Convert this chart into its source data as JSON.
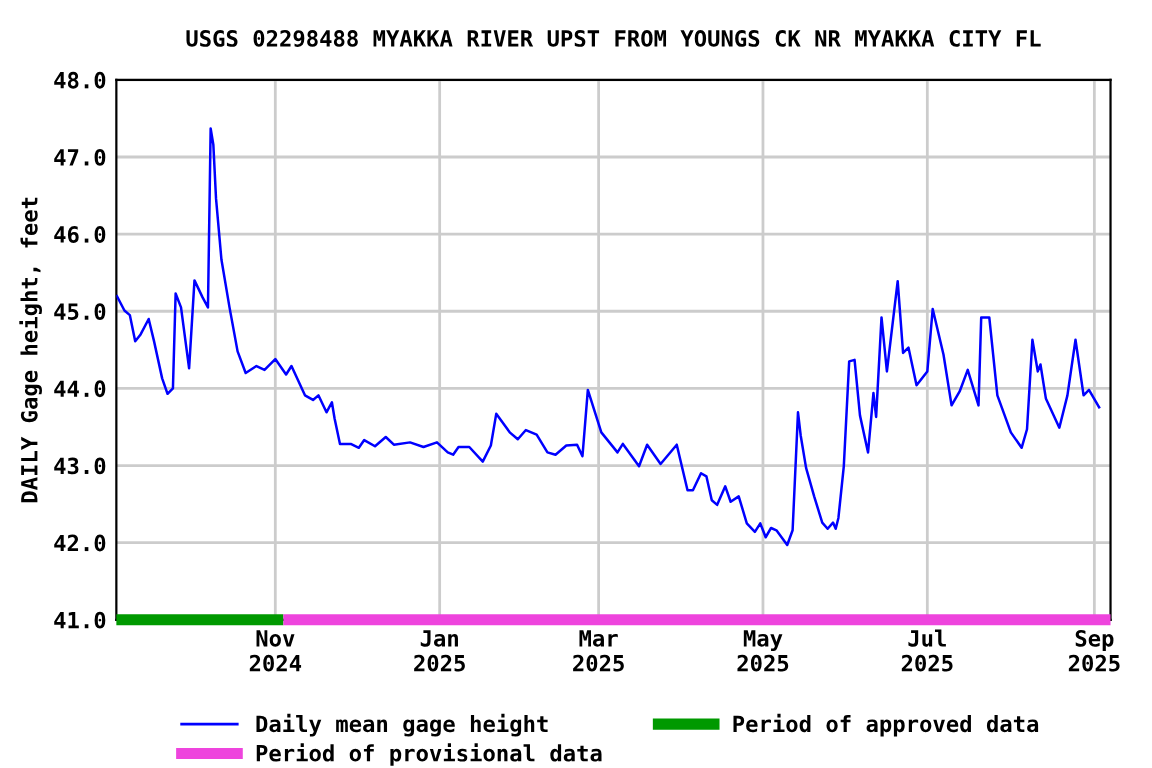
{
  "chart_data": {
    "type": "line",
    "title": "USGS 02298488 MYAKKA RIVER UPST FROM YOUNGS CK NR MYAKKA CITY FL",
    "ylabel": "DAILY Gage height, feet",
    "x": [
      "2024-09-03",
      "2024-09-06",
      "2024-09-08",
      "2024-09-10",
      "2024-09-12",
      "2024-09-15",
      "2024-09-17",
      "2024-09-20",
      "2024-09-22",
      "2024-09-24",
      "2024-09-25",
      "2024-09-27",
      "2024-09-30",
      "2024-10-02",
      "2024-10-05",
      "2024-10-07",
      "2024-10-08",
      "2024-10-09",
      "2024-10-10",
      "2024-10-12",
      "2024-10-15",
      "2024-10-18",
      "2024-10-21",
      "2024-10-25",
      "2024-10-28",
      "2024-11-01",
      "2024-11-05",
      "2024-11-07",
      "2024-11-12",
      "2024-11-15",
      "2024-11-17",
      "2024-11-20",
      "2024-11-22",
      "2024-11-23",
      "2024-11-25",
      "2024-11-29",
      "2024-12-02",
      "2024-12-04",
      "2024-12-08",
      "2024-12-12",
      "2024-12-15",
      "2024-12-21",
      "2024-12-26",
      "2024-12-31",
      "2025-01-04",
      "2025-01-06",
      "2025-01-08",
      "2025-01-12",
      "2025-01-17",
      "2025-01-20",
      "2025-01-22",
      "2025-01-27",
      "2025-01-30",
      "2025-02-02",
      "2025-02-06",
      "2025-02-10",
      "2025-02-13",
      "2025-02-17",
      "2025-02-21",
      "2025-02-23",
      "2025-02-25",
      "2025-03-02",
      "2025-03-08",
      "2025-03-10",
      "2025-03-16",
      "2025-03-19",
      "2025-03-24",
      "2025-03-30",
      "2025-04-03",
      "2025-04-05",
      "2025-04-08",
      "2025-04-10",
      "2025-04-12",
      "2025-04-14",
      "2025-04-17",
      "2025-04-19",
      "2025-04-22",
      "2025-04-25",
      "2025-04-28",
      "2025-04-30",
      "2025-05-02",
      "2025-05-04",
      "2025-05-06",
      "2025-05-10",
      "2025-05-12",
      "2025-05-14",
      "2025-05-15",
      "2025-05-17",
      "2025-05-20",
      "2025-05-23",
      "2025-05-25",
      "2025-05-27",
      "2025-05-28",
      "2025-05-29",
      "2025-05-31",
      "2025-06-02",
      "2025-06-04",
      "2025-06-06",
      "2025-06-09",
      "2025-06-11",
      "2025-06-12",
      "2025-06-14",
      "2025-06-16",
      "2025-06-20",
      "2025-06-22",
      "2025-06-24",
      "2025-06-27",
      "2025-07-01",
      "2025-07-03",
      "2025-07-07",
      "2025-07-10",
      "2025-07-13",
      "2025-07-16",
      "2025-07-20",
      "2025-07-21",
      "2025-07-24",
      "2025-07-27",
      "2025-08-01",
      "2025-08-05",
      "2025-08-07",
      "2025-08-09",
      "2025-08-11",
      "2025-08-12",
      "2025-08-14",
      "2025-08-19",
      "2025-08-22",
      "2025-08-25",
      "2025-08-28",
      "2025-08-30",
      "2025-09-03"
    ],
    "series": [
      {
        "name": "Daily mean gage height",
        "color": "#0000ff",
        "values": [
          45.21,
          45.01,
          44.95,
          44.61,
          44.7,
          44.9,
          44.61,
          44.13,
          43.93,
          44.0,
          45.23,
          45.05,
          44.26,
          45.4,
          45.18,
          45.05,
          47.37,
          47.16,
          46.46,
          45.67,
          45.05,
          44.48,
          44.2,
          44.29,
          44.24,
          44.38,
          44.18,
          44.29,
          43.91,
          43.85,
          43.91,
          43.69,
          43.82,
          43.61,
          43.28,
          43.28,
          43.23,
          43.33,
          43.25,
          43.37,
          43.27,
          43.3,
          43.24,
          43.3,
          43.17,
          43.14,
          43.24,
          43.24,
          43.05,
          43.26,
          43.67,
          43.43,
          43.34,
          43.46,
          43.4,
          43.17,
          43.14,
          43.26,
          43.27,
          43.12,
          43.98,
          43.43,
          43.17,
          43.28,
          42.99,
          43.27,
          43.02,
          43.27,
          42.68,
          42.68,
          42.9,
          42.86,
          42.55,
          42.49,
          42.73,
          42.53,
          42.6,
          42.25,
          42.14,
          42.25,
          42.07,
          42.19,
          42.16,
          41.97,
          42.16,
          43.69,
          43.39,
          42.97,
          42.6,
          42.26,
          42.18,
          42.26,
          42.18,
          42.32,
          42.99,
          44.35,
          44.37,
          43.65,
          43.17,
          43.94,
          43.63,
          44.92,
          44.22,
          45.39,
          44.46,
          44.53,
          44.04,
          44.22,
          45.03,
          44.44,
          43.78,
          43.96,
          44.24,
          43.78,
          44.92,
          44.92,
          43.91,
          43.43,
          43.23,
          43.47,
          44.63,
          44.22,
          44.31,
          43.87,
          43.49,
          43.91,
          44.63,
          43.91,
          43.98,
          43.74
        ]
      },
      {
        "name": "Period of approved data",
        "color": "#009900",
        "x": [
          "2024-09-03",
          "2024-11-04"
        ],
        "values": [
          41.0,
          41.0
        ]
      },
      {
        "name": "Period of provisional data",
        "color": "#ee44dd",
        "x": [
          "2024-11-04",
          "2025-09-07"
        ],
        "values": [
          41.0,
          41.0
        ]
      }
    ],
    "xlim": [
      "2024-09-03",
      "2025-09-07"
    ],
    "xticks": [
      {
        "value": "2024-11-01",
        "label": "Nov\n2024"
      },
      {
        "value": "2025-01-01",
        "label": "Jan\n2025"
      },
      {
        "value": "2025-03-01",
        "label": "Mar\n2025"
      },
      {
        "value": "2025-05-01",
        "label": "May\n2025"
      },
      {
        "value": "2025-07-01",
        "label": "Jul\n2025"
      },
      {
        "value": "2025-09-01",
        "label": "Sep\n2025"
      }
    ],
    "ylim": [
      41.0,
      48.0
    ],
    "yticks": [
      {
        "value": 41.0,
        "label": "41.0"
      },
      {
        "value": 42.0,
        "label": "42.0"
      },
      {
        "value": 43.0,
        "label": "43.0"
      },
      {
        "value": 44.0,
        "label": "44.0"
      },
      {
        "value": 45.0,
        "label": "45.0"
      },
      {
        "value": 46.0,
        "label": "46.0"
      },
      {
        "value": 47.0,
        "label": "47.0"
      },
      {
        "value": 48.0,
        "label": "48.0"
      }
    ],
    "grid": true,
    "legend": "bottom",
    "line_style": "solid",
    "marker": "none"
  }
}
